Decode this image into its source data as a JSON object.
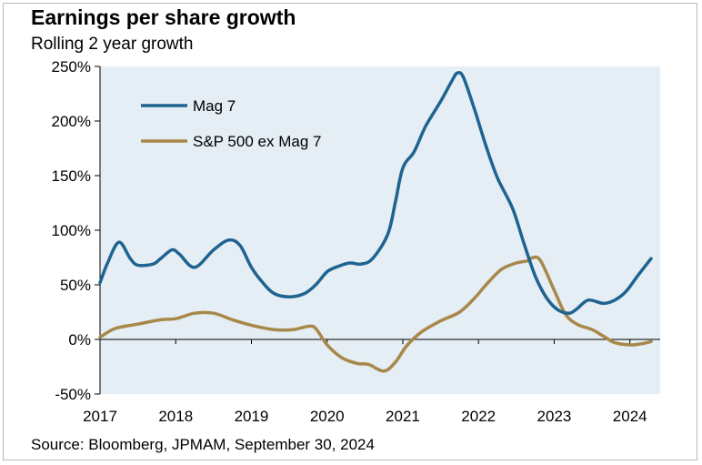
{
  "header": {
    "title": "Earnings per share growth",
    "subtitle": "Rolling 2 year growth"
  },
  "footer": {
    "source": "Source: Bloomberg, JPMAM, September 30, 2024"
  },
  "chart_data": {
    "type": "line",
    "title": "Earnings per share growth",
    "subtitle": "Rolling 2 year growth",
    "xlabel": "",
    "ylabel": "",
    "xlim": [
      2017,
      2024.4
    ],
    "ylim": [
      -50,
      250
    ],
    "x_ticks": [
      2017,
      2018,
      2019,
      2020,
      2021,
      2022,
      2023,
      2024
    ],
    "x_tick_labels": [
      "2017",
      "2018",
      "2019",
      "2020",
      "2021",
      "2022",
      "2023",
      "2024"
    ],
    "y_ticks": [
      -50,
      0,
      50,
      100,
      150,
      200,
      250
    ],
    "y_tick_labels": [
      "-50%",
      "0%",
      "50%",
      "100%",
      "150%",
      "200%",
      "250%"
    ],
    "plot_background": "#e4eef4",
    "legend_position": "top-left",
    "series": [
      {
        "name": "Mag 7",
        "color": "#1f6391",
        "points": [
          [
            2017.0,
            52
          ],
          [
            2017.1,
            70
          ],
          [
            2017.25,
            89
          ],
          [
            2017.4,
            74
          ],
          [
            2017.5,
            68
          ],
          [
            2017.7,
            69
          ],
          [
            2017.8,
            74
          ],
          [
            2017.95,
            82
          ],
          [
            2018.05,
            78
          ],
          [
            2018.25,
            66
          ],
          [
            2018.5,
            82
          ],
          [
            2018.7,
            91
          ],
          [
            2018.85,
            86
          ],
          [
            2019.0,
            66
          ],
          [
            2019.15,
            52
          ],
          [
            2019.3,
            42
          ],
          [
            2019.5,
            39
          ],
          [
            2019.7,
            42
          ],
          [
            2019.85,
            50
          ],
          [
            2020.0,
            62
          ],
          [
            2020.15,
            67
          ],
          [
            2020.3,
            70
          ],
          [
            2020.45,
            69
          ],
          [
            2020.6,
            74
          ],
          [
            2020.8,
            96
          ],
          [
            2020.9,
            125
          ],
          [
            2021.0,
            157
          ],
          [
            2021.15,
            172
          ],
          [
            2021.3,
            195
          ],
          [
            2021.5,
            218
          ],
          [
            2021.65,
            237
          ],
          [
            2021.72,
            244
          ],
          [
            2021.8,
            240
          ],
          [
            2021.95,
            210
          ],
          [
            2022.1,
            177
          ],
          [
            2022.25,
            148
          ],
          [
            2022.45,
            120
          ],
          [
            2022.6,
            88
          ],
          [
            2022.75,
            58
          ],
          [
            2022.9,
            38
          ],
          [
            2023.05,
            27
          ],
          [
            2023.2,
            24
          ],
          [
            2023.3,
            28
          ],
          [
            2023.45,
            36
          ],
          [
            2023.65,
            33
          ],
          [
            2023.8,
            36
          ],
          [
            2023.95,
            44
          ],
          [
            2024.1,
            58
          ],
          [
            2024.28,
            74
          ]
        ]
      },
      {
        "name": "S&P 500 ex Mag 7",
        "color": "#a8884a",
        "points": [
          [
            2017.0,
            2
          ],
          [
            2017.2,
            10
          ],
          [
            2017.5,
            14
          ],
          [
            2017.8,
            18
          ],
          [
            2018.0,
            19
          ],
          [
            2018.25,
            24
          ],
          [
            2018.5,
            24
          ],
          [
            2018.75,
            18
          ],
          [
            2019.0,
            13
          ],
          [
            2019.3,
            9
          ],
          [
            2019.55,
            9
          ],
          [
            2019.75,
            12
          ],
          [
            2019.85,
            10
          ],
          [
            2020.0,
            -5
          ],
          [
            2020.2,
            -17
          ],
          [
            2020.4,
            -22
          ],
          [
            2020.55,
            -23
          ],
          [
            2020.75,
            -29
          ],
          [
            2020.9,
            -21
          ],
          [
            2021.05,
            -6
          ],
          [
            2021.25,
            7
          ],
          [
            2021.5,
            17
          ],
          [
            2021.75,
            25
          ],
          [
            2021.95,
            38
          ],
          [
            2022.1,
            50
          ],
          [
            2022.3,
            64
          ],
          [
            2022.5,
            70
          ],
          [
            2022.65,
            72
          ],
          [
            2022.72,
            75
          ],
          [
            2022.82,
            72
          ],
          [
            2023.0,
            45
          ],
          [
            2023.15,
            23
          ],
          [
            2023.3,
            14
          ],
          [
            2023.5,
            9
          ],
          [
            2023.65,
            3
          ],
          [
            2023.8,
            -3
          ],
          [
            2024.0,
            -5
          ],
          [
            2024.15,
            -4
          ],
          [
            2024.28,
            -2
          ]
        ]
      }
    ]
  }
}
